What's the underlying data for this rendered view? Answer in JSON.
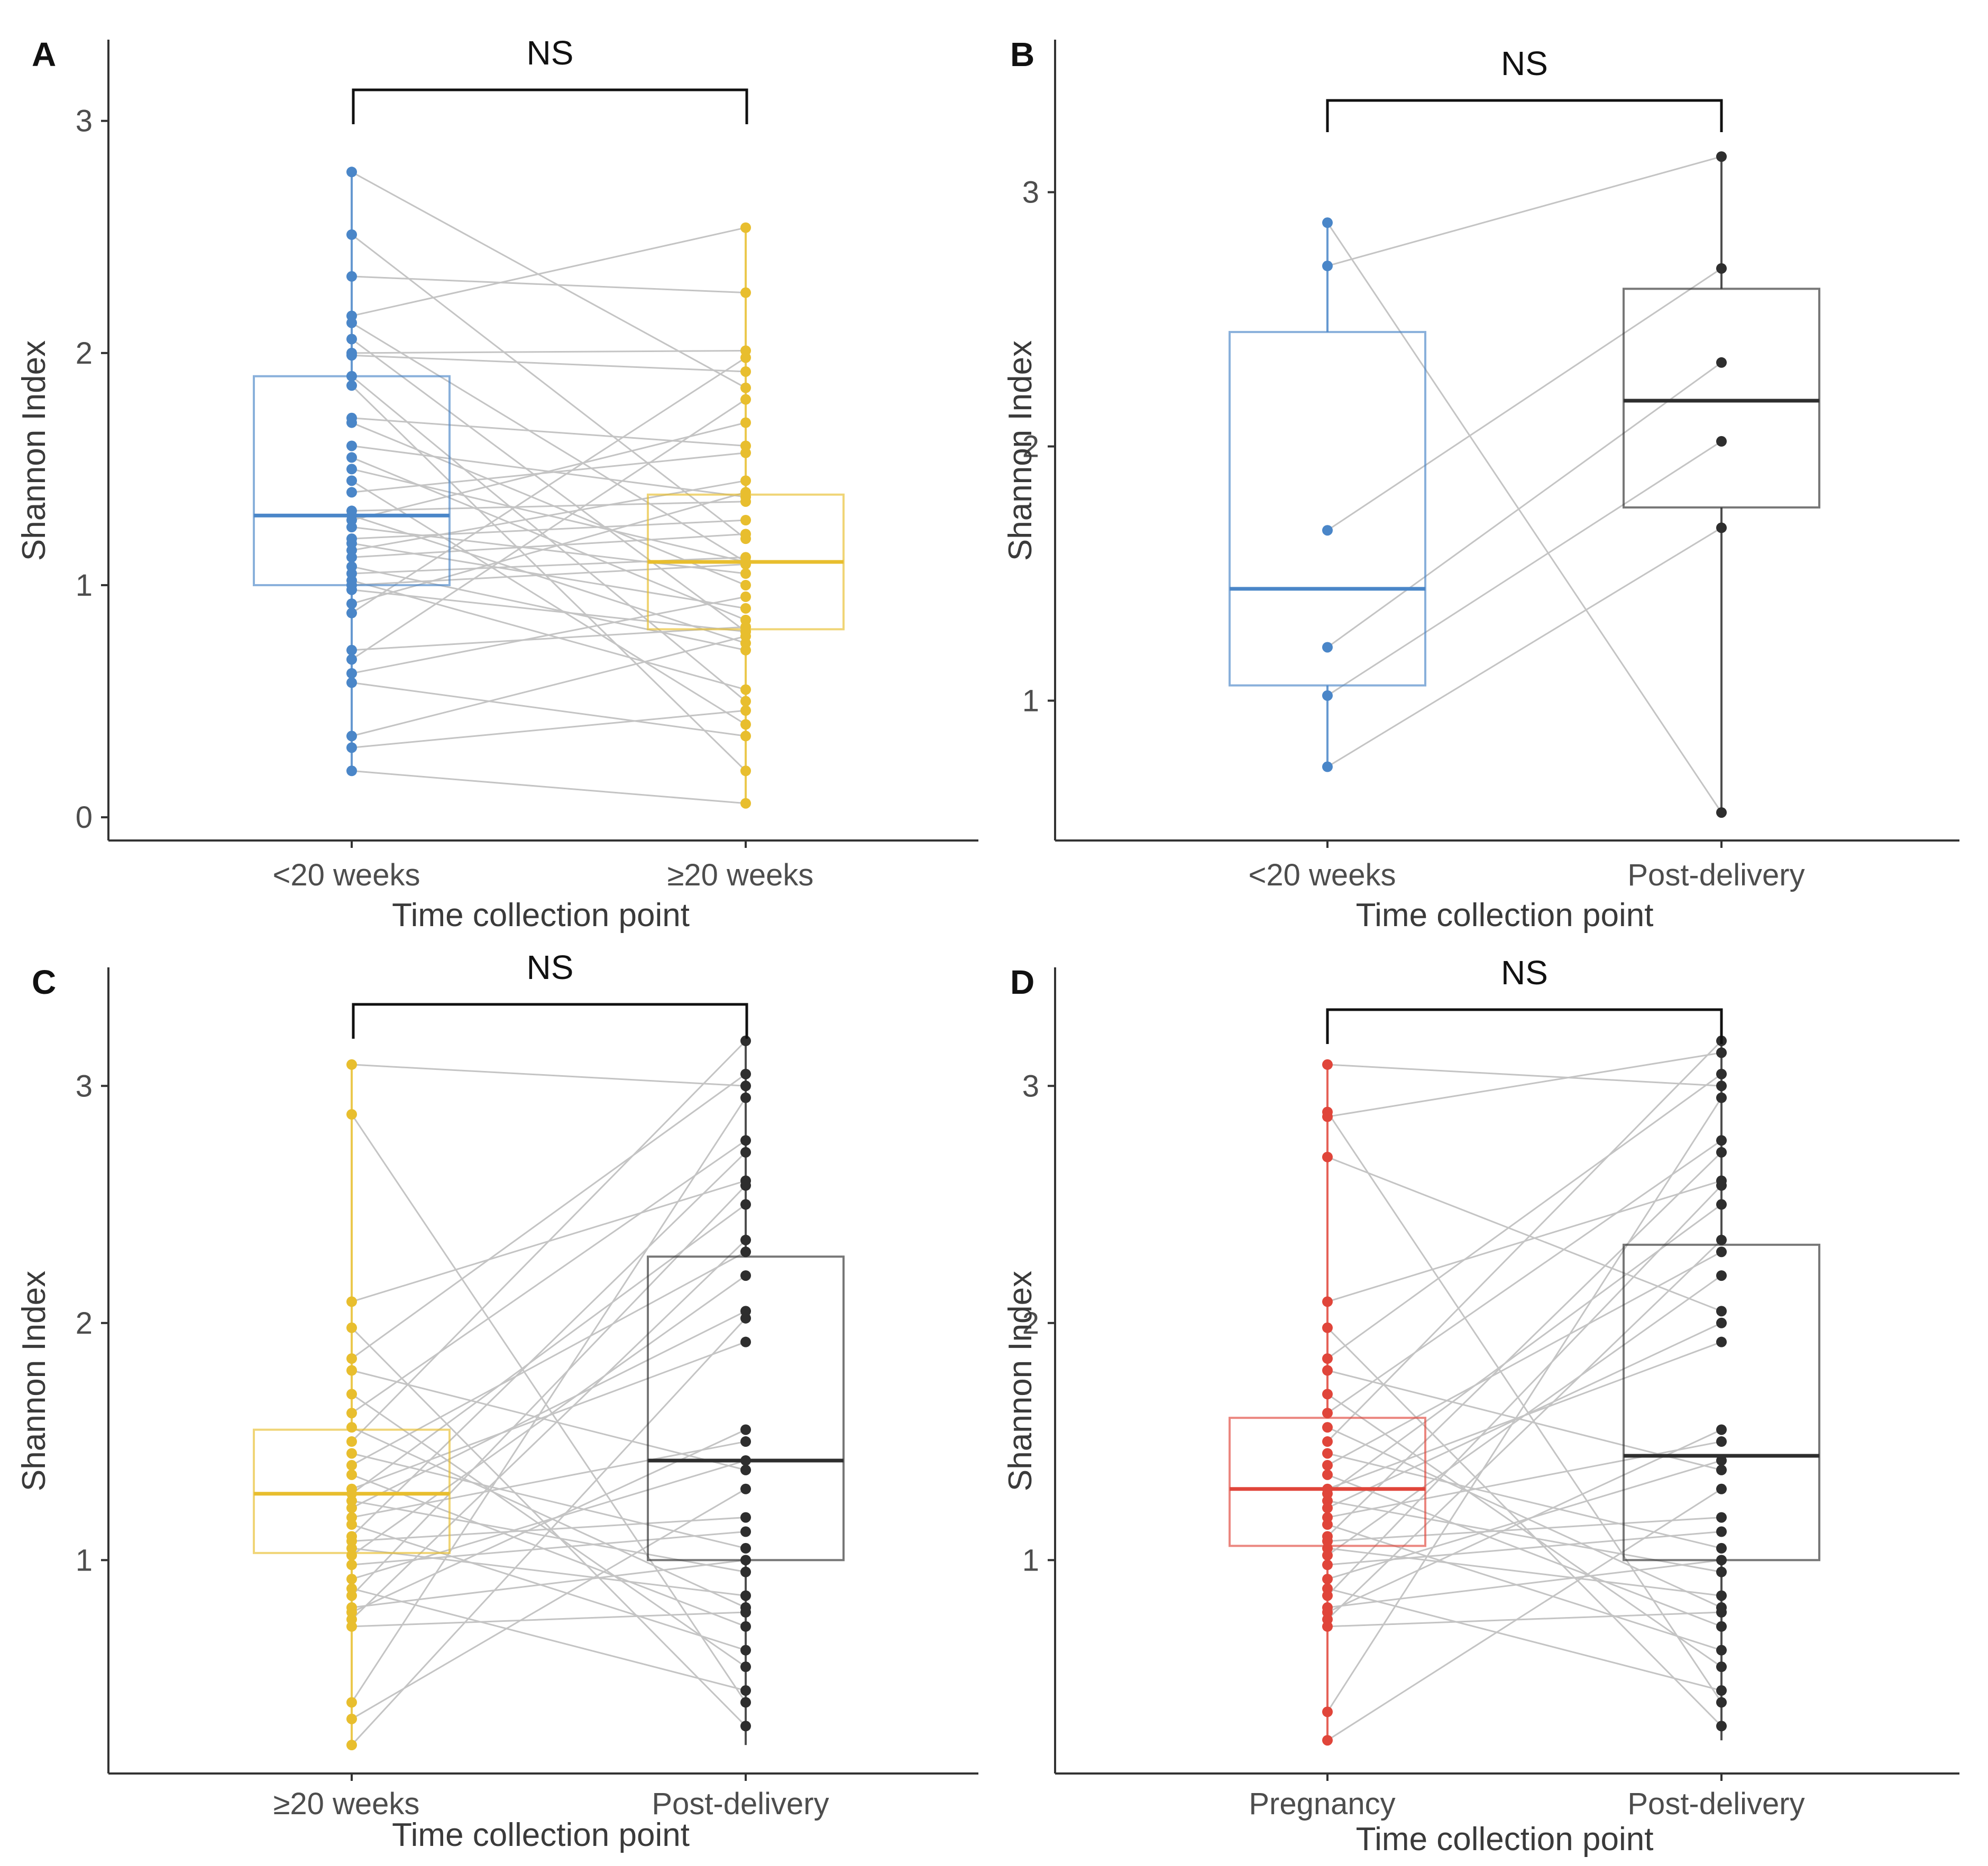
{
  "figure": {
    "colors": {
      "blue": "#4a86c8",
      "yellow": "#e8be2e",
      "black": "#2e2e2e",
      "red": "#e0453a",
      "line": "#c4c4c4",
      "axis": "#333333"
    }
  },
  "chart_data": [
    {
      "panel": "A",
      "type": "box-paired",
      "xlabel": "Time collection point",
      "ylabel": "Shannon Index",
      "ylim": [
        -0.1,
        3.35
      ],
      "yticks": [
        0,
        1,
        2,
        3
      ],
      "significance": "NS",
      "categories": [
        "<20 weeks",
        "≥20 weeks"
      ],
      "colors": [
        "#4a86c8",
        "#e8be2e"
      ],
      "boxes": [
        {
          "q1": 1.0,
          "median": 1.3,
          "q3": 1.9,
          "whisker_low": 0.2,
          "whisker_high": 2.78
        },
        {
          "q1": 0.81,
          "median": 1.1,
          "q3": 1.39,
          "whisker_low": 0.06,
          "whisker_high": 2.54
        }
      ],
      "pairs": [
        [
          2.78,
          1.85
        ],
        [
          2.51,
          1.2
        ],
        [
          2.33,
          2.26
        ],
        [
          2.16,
          2.54
        ],
        [
          2.13,
          1.1
        ],
        [
          2.06,
          0.8
        ],
        [
          2.0,
          2.01
        ],
        [
          1.99,
          1.92
        ],
        [
          1.9,
          0.5
        ],
        [
          1.86,
          0.2
        ],
        [
          1.72,
          1.6
        ],
        [
          1.7,
          1.0
        ],
        [
          1.6,
          1.38
        ],
        [
          1.55,
          0.85
        ],
        [
          1.5,
          1.1
        ],
        [
          1.45,
          0.4
        ],
        [
          1.4,
          1.57
        ],
        [
          1.32,
          1.36
        ],
        [
          1.3,
          0.75
        ],
        [
          1.28,
          1.7
        ],
        [
          1.25,
          1.05
        ],
        [
          1.2,
          1.28
        ],
        [
          1.18,
          0.9
        ],
        [
          1.15,
          1.45
        ],
        [
          1.12,
          1.22
        ],
        [
          1.08,
          0.72
        ],
        [
          1.05,
          1.12
        ],
        [
          1.02,
          0.55
        ],
        [
          1.0,
          1.09
        ],
        [
          0.98,
          0.8
        ],
        [
          0.92,
          1.4
        ],
        [
          0.88,
          1.98
        ],
        [
          0.72,
          0.82
        ],
        [
          0.68,
          1.8
        ],
        [
          0.62,
          0.95
        ],
        [
          0.58,
          0.35
        ],
        [
          0.35,
          0.78
        ],
        [
          0.3,
          0.46
        ],
        [
          0.2,
          0.06
        ]
      ]
    },
    {
      "panel": "B",
      "type": "box-paired",
      "xlabel": "Time collection point",
      "ylabel": "Shannon Index",
      "ylim": [
        0.45,
        3.6
      ],
      "yticks": [
        1,
        2,
        3
      ],
      "significance": "NS",
      "categories": [
        "<20 weeks",
        "Post-delivery"
      ],
      "colors": [
        "#4a86c8",
        "#2e2e2e"
      ],
      "boxes": [
        {
          "q1": 1.06,
          "median": 1.44,
          "q3": 2.45,
          "whisker_low": 0.74,
          "whisker_high": 2.88
        },
        {
          "q1": 1.76,
          "median": 2.18,
          "q3": 2.62,
          "whisker_low": 0.56,
          "whisker_high": 3.14
        }
      ],
      "pairs": [
        [
          2.88,
          0.56
        ],
        [
          2.71,
          3.14
        ],
        [
          1.67,
          2.7
        ],
        [
          1.21,
          2.33
        ],
        [
          1.02,
          2.02
        ],
        [
          0.74,
          1.68
        ]
      ]
    },
    {
      "panel": "C",
      "type": "box-paired",
      "xlabel": "Time collection point",
      "ylabel": "Shannon Index",
      "ylim": [
        0.1,
        3.5
      ],
      "yticks": [
        1,
        2,
        3
      ],
      "significance": "NS",
      "categories": [
        "≥20 weeks",
        "Post-delivery"
      ],
      "colors": [
        "#e8be2e",
        "#2e2e2e"
      ],
      "boxes": [
        {
          "q1": 1.03,
          "median": 1.28,
          "q3": 1.55,
          "whisker_low": 0.22,
          "whisker_high": 3.09
        },
        {
          "q1": 1.0,
          "median": 1.42,
          "q3": 2.28,
          "whisker_low": 0.22,
          "whisker_high": 3.19
        }
      ],
      "pairs": [
        [
          3.09,
          3.0
        ],
        [
          2.88,
          0.4
        ],
        [
          2.09,
          2.6
        ],
        [
          1.98,
          0.3
        ],
        [
          1.85,
          3.05
        ],
        [
          1.8,
          1.38
        ],
        [
          1.7,
          0.55
        ],
        [
          1.62,
          2.77
        ],
        [
          1.56,
          0.8
        ],
        [
          1.5,
          3.19
        ],
        [
          1.45,
          1.05
        ],
        [
          1.4,
          2.3
        ],
        [
          1.36,
          0.72
        ],
        [
          1.3,
          1.92
        ],
        [
          1.28,
          2.5
        ],
        [
          1.25,
          0.95
        ],
        [
          1.22,
          2.05
        ],
        [
          1.18,
          1.5
        ],
        [
          1.15,
          0.62
        ],
        [
          1.1,
          2.72
        ],
        [
          1.08,
          1.18
        ],
        [
          1.05,
          0.85
        ],
        [
          1.02,
          2.2
        ],
        [
          0.98,
          1.12
        ],
        [
          0.92,
          1.42
        ],
        [
          0.88,
          0.45
        ],
        [
          0.85,
          2.58
        ],
        [
          0.8,
          1.0
        ],
        [
          0.78,
          1.55
        ],
        [
          0.75,
          2.35
        ],
        [
          0.72,
          0.78
        ],
        [
          0.4,
          2.95
        ],
        [
          0.33,
          1.3
        ],
        [
          0.22,
          2.02
        ]
      ]
    },
    {
      "panel": "D",
      "type": "box-paired",
      "xlabel": "Time collection point",
      "ylabel": "Shannon Index",
      "ylim": [
        0.1,
        3.5
      ],
      "yticks": [
        1,
        2,
        3
      ],
      "significance": "NS",
      "categories": [
        "Pregnancy",
        "Post-delivery"
      ],
      "colors": [
        "#e0453a",
        "#2e2e2e"
      ],
      "boxes": [
        {
          "q1": 1.06,
          "median": 1.3,
          "q3": 1.6,
          "whisker_low": 0.24,
          "whisker_high": 3.09
        },
        {
          "q1": 1.0,
          "median": 1.44,
          "q3": 2.33,
          "whisker_low": 0.24,
          "whisker_high": 3.19
        }
      ],
      "pairs": [
        [
          3.09,
          3.0
        ],
        [
          2.89,
          0.4
        ],
        [
          2.87,
          3.14
        ],
        [
          2.7,
          2.05
        ],
        [
          2.09,
          2.6
        ],
        [
          1.98,
          0.3
        ],
        [
          1.85,
          3.05
        ],
        [
          1.8,
          1.38
        ],
        [
          1.7,
          0.55
        ],
        [
          1.62,
          2.77
        ],
        [
          1.56,
          0.8
        ],
        [
          1.5,
          3.19
        ],
        [
          1.45,
          1.05
        ],
        [
          1.4,
          2.3
        ],
        [
          1.36,
          0.72
        ],
        [
          1.3,
          1.92
        ],
        [
          1.28,
          2.5
        ],
        [
          1.25,
          0.95
        ],
        [
          1.22,
          2.0
        ],
        [
          1.18,
          1.5
        ],
        [
          1.15,
          0.62
        ],
        [
          1.1,
          2.72
        ],
        [
          1.08,
          1.18
        ],
        [
          1.05,
          0.85
        ],
        [
          1.02,
          2.2
        ],
        [
          0.98,
          1.12
        ],
        [
          0.92,
          1.42
        ],
        [
          0.88,
          0.45
        ],
        [
          0.85,
          2.58
        ],
        [
          0.8,
          1.0
        ],
        [
          0.78,
          1.55
        ],
        [
          0.75,
          2.35
        ],
        [
          0.72,
          0.78
        ],
        [
          0.36,
          2.95
        ],
        [
          0.24,
          1.3
        ]
      ]
    }
  ]
}
